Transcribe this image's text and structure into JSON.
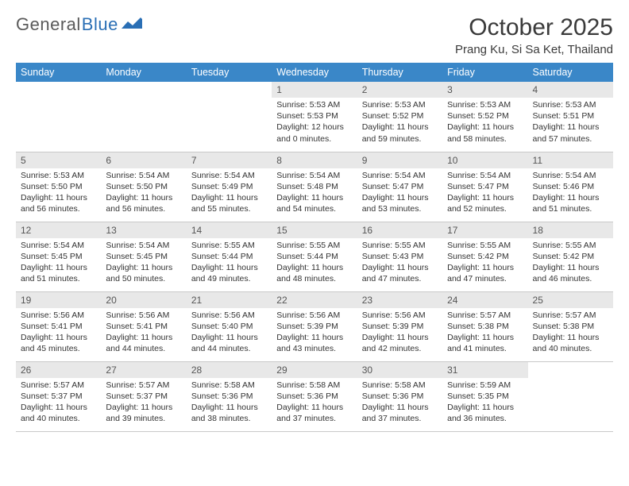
{
  "logo": {
    "text1": "General",
    "text2": "Blue"
  },
  "title": "October 2025",
  "location": "Prang Ku, Si Sa Ket, Thailand",
  "colors": {
    "header_bg": "#3a87c8",
    "header_text": "#ffffff",
    "daynum_bg": "#e8e8e8",
    "border": "#c9c9c9",
    "logo_gray": "#5a5a5a",
    "logo_blue": "#2a6fb5",
    "text": "#333333"
  },
  "typography": {
    "title_fontsize": 30,
    "location_fontsize": 15,
    "dayheader_fontsize": 12.5,
    "daynum_fontsize": 12,
    "info_fontsize": 10.5
  },
  "day_headers": [
    "Sunday",
    "Monday",
    "Tuesday",
    "Wednesday",
    "Thursday",
    "Friday",
    "Saturday"
  ],
  "weeks": [
    [
      {
        "n": "",
        "sr": "",
        "ss": "",
        "dl": ""
      },
      {
        "n": "",
        "sr": "",
        "ss": "",
        "dl": ""
      },
      {
        "n": "",
        "sr": "",
        "ss": "",
        "dl": ""
      },
      {
        "n": "1",
        "sr": "Sunrise: 5:53 AM",
        "ss": "Sunset: 5:53 PM",
        "dl": "Daylight: 12 hours and 0 minutes."
      },
      {
        "n": "2",
        "sr": "Sunrise: 5:53 AM",
        "ss": "Sunset: 5:52 PM",
        "dl": "Daylight: 11 hours and 59 minutes."
      },
      {
        "n": "3",
        "sr": "Sunrise: 5:53 AM",
        "ss": "Sunset: 5:52 PM",
        "dl": "Daylight: 11 hours and 58 minutes."
      },
      {
        "n": "4",
        "sr": "Sunrise: 5:53 AM",
        "ss": "Sunset: 5:51 PM",
        "dl": "Daylight: 11 hours and 57 minutes."
      }
    ],
    [
      {
        "n": "5",
        "sr": "Sunrise: 5:53 AM",
        "ss": "Sunset: 5:50 PM",
        "dl": "Daylight: 11 hours and 56 minutes."
      },
      {
        "n": "6",
        "sr": "Sunrise: 5:54 AM",
        "ss": "Sunset: 5:50 PM",
        "dl": "Daylight: 11 hours and 56 minutes."
      },
      {
        "n": "7",
        "sr": "Sunrise: 5:54 AM",
        "ss": "Sunset: 5:49 PM",
        "dl": "Daylight: 11 hours and 55 minutes."
      },
      {
        "n": "8",
        "sr": "Sunrise: 5:54 AM",
        "ss": "Sunset: 5:48 PM",
        "dl": "Daylight: 11 hours and 54 minutes."
      },
      {
        "n": "9",
        "sr": "Sunrise: 5:54 AM",
        "ss": "Sunset: 5:47 PM",
        "dl": "Daylight: 11 hours and 53 minutes."
      },
      {
        "n": "10",
        "sr": "Sunrise: 5:54 AM",
        "ss": "Sunset: 5:47 PM",
        "dl": "Daylight: 11 hours and 52 minutes."
      },
      {
        "n": "11",
        "sr": "Sunrise: 5:54 AM",
        "ss": "Sunset: 5:46 PM",
        "dl": "Daylight: 11 hours and 51 minutes."
      }
    ],
    [
      {
        "n": "12",
        "sr": "Sunrise: 5:54 AM",
        "ss": "Sunset: 5:45 PM",
        "dl": "Daylight: 11 hours and 51 minutes."
      },
      {
        "n": "13",
        "sr": "Sunrise: 5:54 AM",
        "ss": "Sunset: 5:45 PM",
        "dl": "Daylight: 11 hours and 50 minutes."
      },
      {
        "n": "14",
        "sr": "Sunrise: 5:55 AM",
        "ss": "Sunset: 5:44 PM",
        "dl": "Daylight: 11 hours and 49 minutes."
      },
      {
        "n": "15",
        "sr": "Sunrise: 5:55 AM",
        "ss": "Sunset: 5:44 PM",
        "dl": "Daylight: 11 hours and 48 minutes."
      },
      {
        "n": "16",
        "sr": "Sunrise: 5:55 AM",
        "ss": "Sunset: 5:43 PM",
        "dl": "Daylight: 11 hours and 47 minutes."
      },
      {
        "n": "17",
        "sr": "Sunrise: 5:55 AM",
        "ss": "Sunset: 5:42 PM",
        "dl": "Daylight: 11 hours and 47 minutes."
      },
      {
        "n": "18",
        "sr": "Sunrise: 5:55 AM",
        "ss": "Sunset: 5:42 PM",
        "dl": "Daylight: 11 hours and 46 minutes."
      }
    ],
    [
      {
        "n": "19",
        "sr": "Sunrise: 5:56 AM",
        "ss": "Sunset: 5:41 PM",
        "dl": "Daylight: 11 hours and 45 minutes."
      },
      {
        "n": "20",
        "sr": "Sunrise: 5:56 AM",
        "ss": "Sunset: 5:41 PM",
        "dl": "Daylight: 11 hours and 44 minutes."
      },
      {
        "n": "21",
        "sr": "Sunrise: 5:56 AM",
        "ss": "Sunset: 5:40 PM",
        "dl": "Daylight: 11 hours and 44 minutes."
      },
      {
        "n": "22",
        "sr": "Sunrise: 5:56 AM",
        "ss": "Sunset: 5:39 PM",
        "dl": "Daylight: 11 hours and 43 minutes."
      },
      {
        "n": "23",
        "sr": "Sunrise: 5:56 AM",
        "ss": "Sunset: 5:39 PM",
        "dl": "Daylight: 11 hours and 42 minutes."
      },
      {
        "n": "24",
        "sr": "Sunrise: 5:57 AM",
        "ss": "Sunset: 5:38 PM",
        "dl": "Daylight: 11 hours and 41 minutes."
      },
      {
        "n": "25",
        "sr": "Sunrise: 5:57 AM",
        "ss": "Sunset: 5:38 PM",
        "dl": "Daylight: 11 hours and 40 minutes."
      }
    ],
    [
      {
        "n": "26",
        "sr": "Sunrise: 5:57 AM",
        "ss": "Sunset: 5:37 PM",
        "dl": "Daylight: 11 hours and 40 minutes."
      },
      {
        "n": "27",
        "sr": "Sunrise: 5:57 AM",
        "ss": "Sunset: 5:37 PM",
        "dl": "Daylight: 11 hours and 39 minutes."
      },
      {
        "n": "28",
        "sr": "Sunrise: 5:58 AM",
        "ss": "Sunset: 5:36 PM",
        "dl": "Daylight: 11 hours and 38 minutes."
      },
      {
        "n": "29",
        "sr": "Sunrise: 5:58 AM",
        "ss": "Sunset: 5:36 PM",
        "dl": "Daylight: 11 hours and 37 minutes."
      },
      {
        "n": "30",
        "sr": "Sunrise: 5:58 AM",
        "ss": "Sunset: 5:36 PM",
        "dl": "Daylight: 11 hours and 37 minutes."
      },
      {
        "n": "31",
        "sr": "Sunrise: 5:59 AM",
        "ss": "Sunset: 5:35 PM",
        "dl": "Daylight: 11 hours and 36 minutes."
      },
      {
        "n": "",
        "sr": "",
        "ss": "",
        "dl": ""
      }
    ]
  ]
}
